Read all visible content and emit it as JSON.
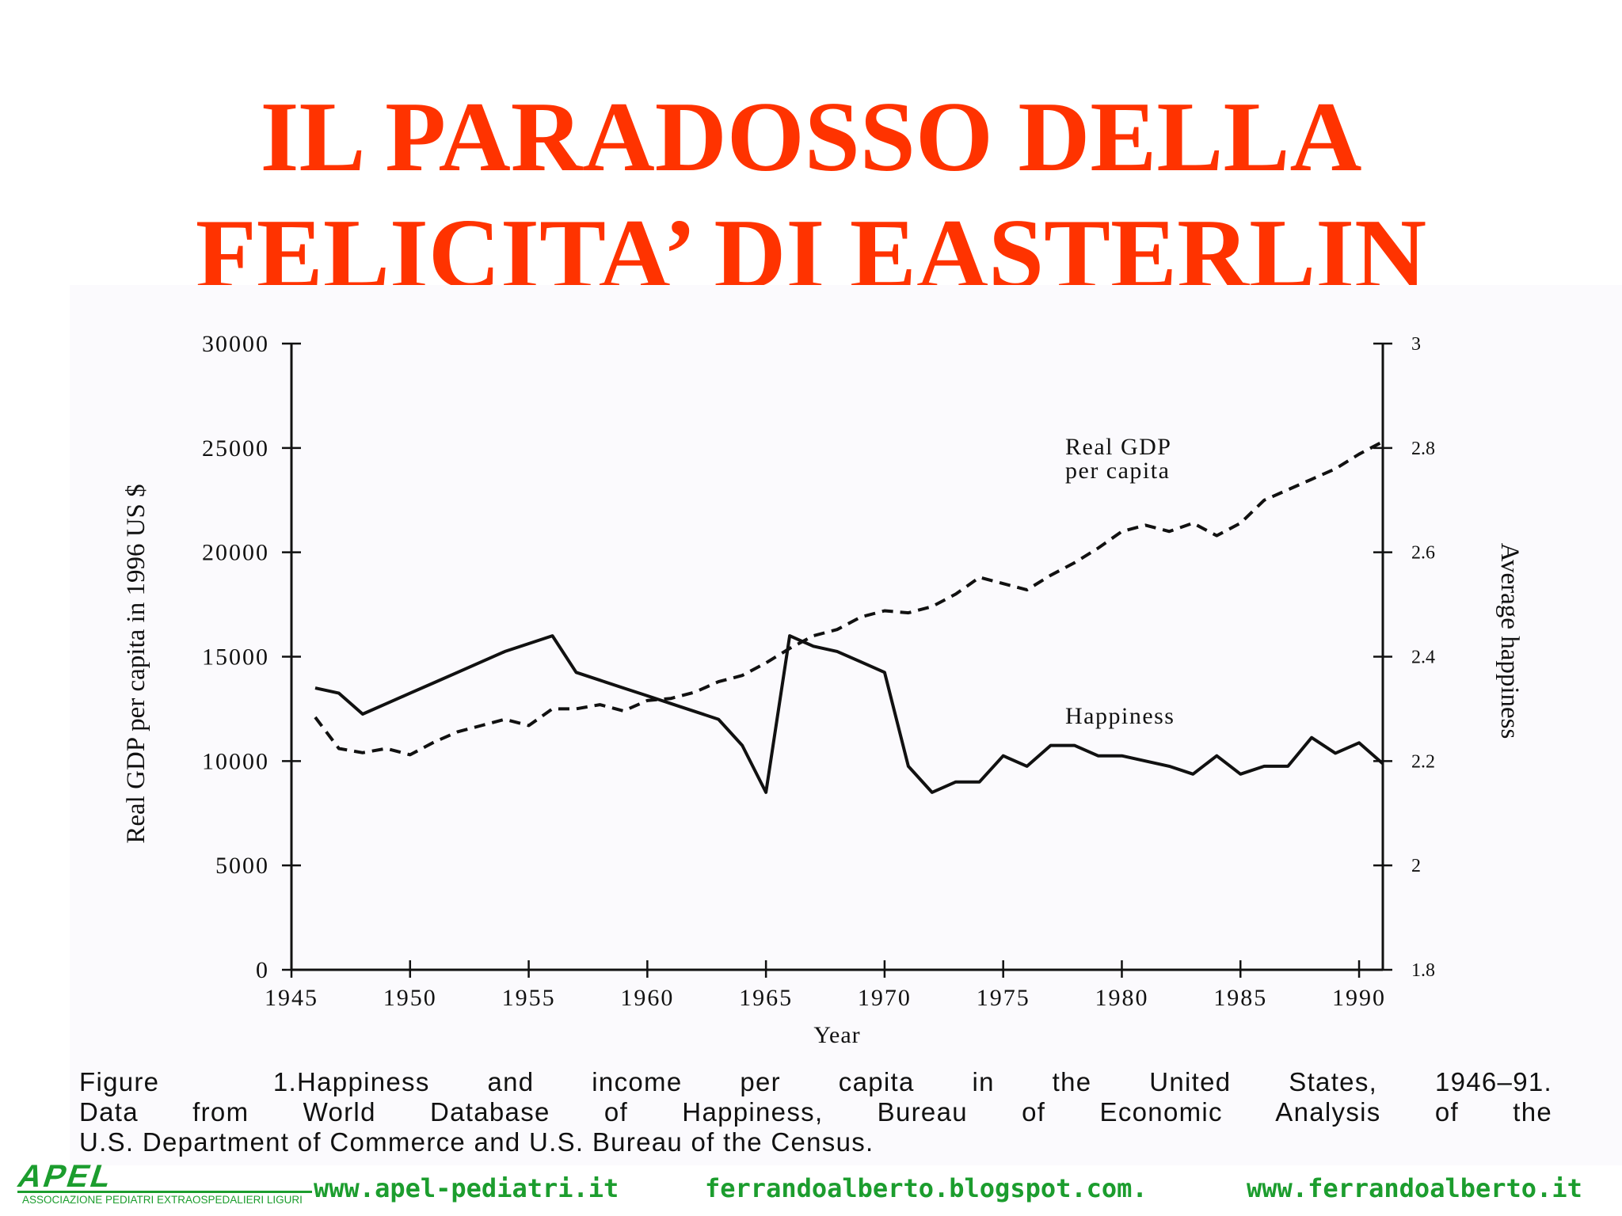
{
  "slide": {
    "title_line1": "IL PARADOSSO DELLA",
    "title_line2": "FELICITA’ DI EASTERLIN",
    "title_color": "#ff3300"
  },
  "chart_data": {
    "type": "line",
    "title": "",
    "xlabel": "Year",
    "ylabel": "Real GDP per capita in 1996 US $",
    "y2label": "Average happiness",
    "xlim": [
      1945,
      1991
    ],
    "ylim": [
      0,
      30000
    ],
    "y2lim": [
      1.8,
      3
    ],
    "x_ticks": [
      "1945",
      "1950",
      "1955",
      "1960",
      "1965",
      "1970",
      "1975",
      "1980",
      "1985",
      "1990"
    ],
    "y_ticks": [
      "0",
      "5000",
      "10000",
      "15000",
      "20000",
      "25000",
      "30000"
    ],
    "y2_ticks": [
      "1.8",
      "2",
      "2.2",
      "2.4",
      "2.6",
      "2.8",
      "3"
    ],
    "grid": false,
    "series": [
      {
        "name": "Real GDP per capita",
        "axis": "left",
        "style": "dashed",
        "x": [
          1946,
          1947,
          1948,
          1949,
          1950,
          1951,
          1952,
          1953,
          1954,
          1955,
          1956,
          1957,
          1958,
          1959,
          1960,
          1961,
          1962,
          1963,
          1964,
          1965,
          1966,
          1967,
          1968,
          1969,
          1970,
          1971,
          1972,
          1973,
          1974,
          1975,
          1976,
          1977,
          1978,
          1979,
          1980,
          1981,
          1982,
          1983,
          1984,
          1985,
          1986,
          1987,
          1988,
          1989,
          1990,
          1991
        ],
        "values": [
          12100,
          10600,
          10400,
          10600,
          10300,
          10900,
          11400,
          11700,
          12000,
          11700,
          12500,
          12500,
          12700,
          12400,
          12900,
          13000,
          13300,
          13800,
          14100,
          14700,
          15400,
          16000,
          16300,
          16900,
          17200,
          17100,
          17400,
          18000,
          18800,
          18500,
          18200,
          18900,
          19500,
          20200,
          21000,
          21300,
          21000,
          21400,
          20800,
          21400,
          22500,
          23000,
          23500,
          24000,
          24700,
          25300
        ]
      },
      {
        "name": "Happiness",
        "axis": "right",
        "style": "solid",
        "x": [
          1946,
          1947,
          1948,
          1949,
          1950,
          1951,
          1952,
          1953,
          1954,
          1955,
          1956,
          1957,
          1958,
          1959,
          1960,
          1961,
          1962,
          1963,
          1964,
          1965,
          1966,
          1967,
          1968,
          1969,
          1970,
          1971,
          1972,
          1973,
          1974,
          1975,
          1976,
          1977,
          1978,
          1979,
          1980,
          1981,
          1982,
          1983,
          1984,
          1985,
          1986,
          1987,
          1988,
          1989,
          1990,
          1991
        ],
        "values": [
          2.34,
          2.33,
          2.29,
          2.31,
          2.33,
          2.35,
          2.37,
          2.39,
          2.41,
          2.425,
          2.44,
          2.37,
          2.355,
          2.34,
          2.325,
          2.31,
          2.295,
          2.28,
          2.23,
          2.14,
          2.44,
          2.42,
          2.41,
          2.39,
          2.37,
          2.19,
          2.14,
          2.16,
          2.16,
          2.21,
          2.19,
          2.23,
          2.23,
          2.21,
          2.21,
          2.2,
          2.19,
          2.175,
          2.21,
          2.175,
          2.19,
          2.19,
          2.245,
          2.215,
          2.235,
          2.195
        ]
      }
    ],
    "annotations": {
      "gdp_line1": "Real GDP",
      "gdp_line2": "per capita",
      "happiness": "Happiness"
    }
  },
  "caption": {
    "figure_label": "Figure 1.",
    "line1": "Happiness and income per capita in the United States, 1946–91.",
    "line2": "Data from World Database of Happiness, Bureau of Economic Analysis of the",
    "line3": "U.S. Department of Commerce and U.S. Bureau of the Census."
  },
  "footer": {
    "logo_text": "APEL",
    "logo_subtitle": "ASSOCIAZIONE PEDIATRI EXTRAOSPEDALIERI LIGURI",
    "link1": "www.apel-pediatri.it",
    "link2": "ferrandoalberto.blogspot.com.",
    "link3": "www.ferrandoalberto.it",
    "color": "#1c9d2e"
  }
}
